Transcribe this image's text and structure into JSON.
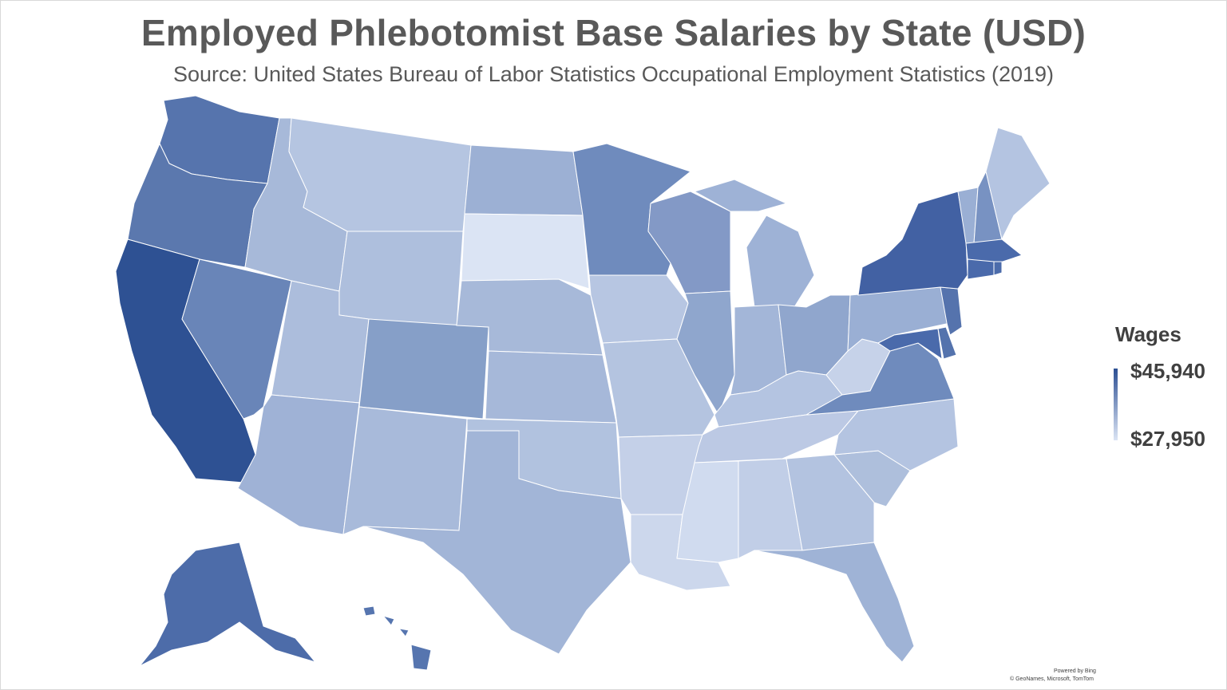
{
  "title": "Employed Phlebotomist Base Salaries by State (USD)",
  "subtitle": "Source: United States Bureau of Labor Statistics Occupational Employment Statistics (2019)",
  "legend": {
    "title": "Wages",
    "max_label": "$45,940",
    "min_label": "$27,950",
    "max_color": "#2c4f93",
    "min_color": "#dbe4f4"
  },
  "attribution": {
    "line1": "Powered by Bing",
    "line2": "© GeoNames, Microsoft, TomTom"
  },
  "colors": {
    "background": "#ffffff",
    "border": "#ffffff"
  }
}
